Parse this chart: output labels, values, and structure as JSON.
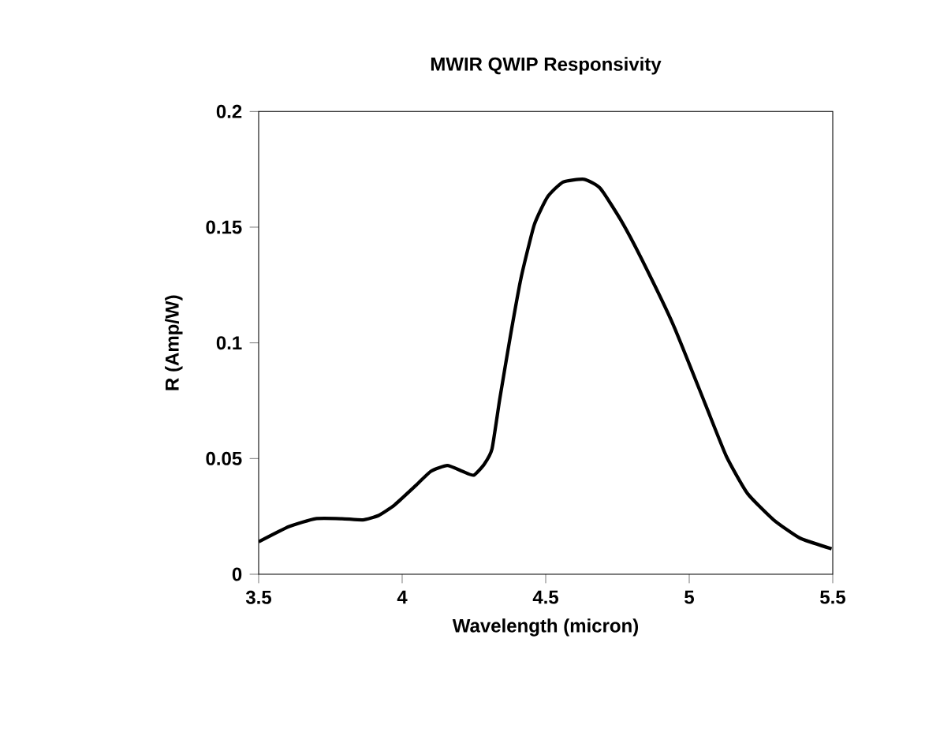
{
  "chart_data": {
    "type": "line",
    "title": "MWIR  QWIP Responsivity",
    "xlabel": "Wavelength (micron)",
    "ylabel": "R (Amp/W)",
    "x": [
      3.5,
      3.606,
      3.698,
      3.79,
      3.863,
      3.918,
      3.973,
      4.047,
      4.1,
      4.157,
      4.21,
      4.249,
      4.285,
      4.313,
      4.34,
      4.377,
      4.414,
      4.46,
      4.506,
      4.56,
      4.634,
      4.69,
      4.762,
      4.835,
      4.945,
      5.056,
      5.13,
      5.203,
      5.294,
      5.386,
      5.496
    ],
    "series": [
      {
        "color": "#000000",
        "values": [
          0.014,
          0.0206,
          0.024,
          0.024,
          0.0235,
          0.0254,
          0.0299,
          0.0383,
          0.0445,
          0.047,
          0.0445,
          0.0428,
          0.0474,
          0.0542,
          0.0758,
          0.103,
          0.128,
          0.151,
          0.163,
          0.1695,
          0.1707,
          0.1668,
          0.153,
          0.136,
          0.1076,
          0.0735,
          0.0508,
          0.0349,
          0.0235,
          0.0156,
          0.011
        ]
      }
    ],
    "xlim": [
      3.5,
      5.5
    ],
    "xticks": [
      3.5,
      4,
      4.5,
      5,
      5.5
    ],
    "ylim": [
      0,
      0.2
    ],
    "yticks": [
      0,
      0.05,
      0.1,
      0.15,
      0.2
    ],
    "marker": "none",
    "line_style": "solid"
  }
}
